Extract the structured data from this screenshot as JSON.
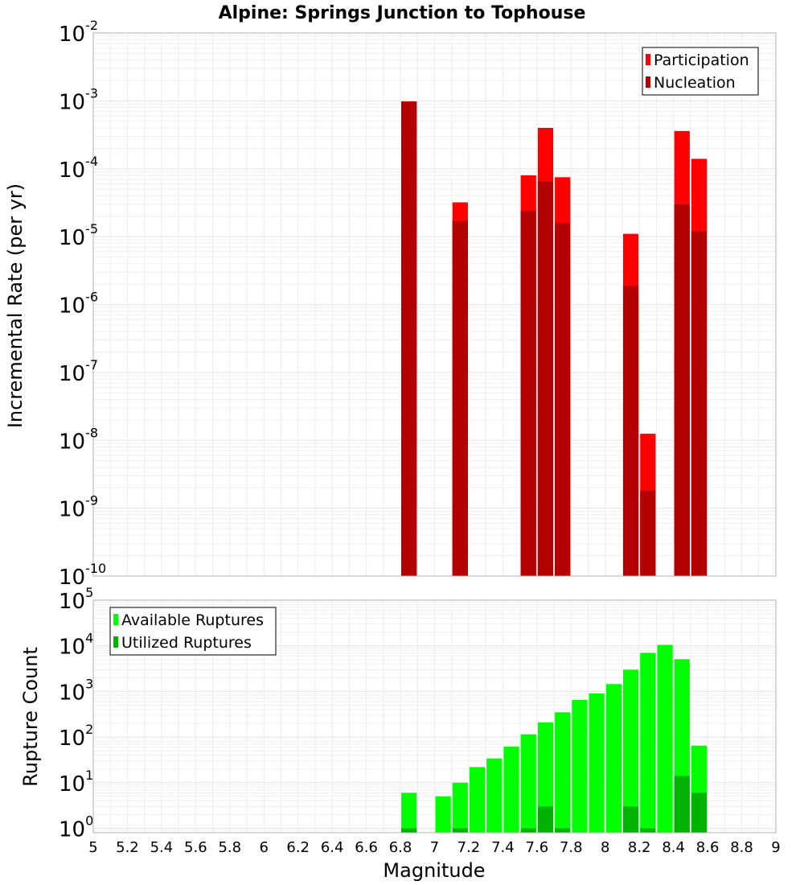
{
  "chart_data": [
    {
      "type": "bar",
      "title": "Alpine: Springs Junction to Tophouse",
      "ylabel": "Incremental Rate (per yr)",
      "yscale": "log",
      "ylim": [
        1e-10,
        0.01
      ],
      "xlim": [
        5,
        9
      ],
      "grid": true,
      "legend_placement": "top-right",
      "x": [
        6.85,
        7.15,
        7.55,
        7.65,
        7.75,
        8.15,
        8.25,
        8.45,
        8.55
      ],
      "series": [
        {
          "name": "Participation",
          "color": "#ff0000",
          "values": [
            0.00098,
            3.2e-05,
            8e-05,
            0.0004,
            7.5e-05,
            1.1e-05,
            1.25e-08,
            0.00036,
            0.00014
          ]
        },
        {
          "name": "Nucleation",
          "color": "#b30000",
          "values": [
            0.00098,
            1.7e-05,
            2.4e-05,
            6.5e-05,
            1.6e-05,
            1.9e-06,
            1.8e-09,
            3e-05,
            1.2e-05
          ]
        }
      ],
      "y_ticks": [
        {
          "base": "10",
          "exp": "-10",
          "value": 1e-10
        },
        {
          "base": "10",
          "exp": "-9",
          "value": 1e-09
        },
        {
          "base": "10",
          "exp": "-8",
          "value": 1e-08
        },
        {
          "base": "10",
          "exp": "-7",
          "value": 1e-07
        },
        {
          "base": "10",
          "exp": "-6",
          "value": 1e-06
        },
        {
          "base": "10",
          "exp": "-5",
          "value": 1e-05
        },
        {
          "base": "10",
          "exp": "-4",
          "value": 0.0001
        },
        {
          "base": "10",
          "exp": "-3",
          "value": 0.001
        },
        {
          "base": "10",
          "exp": "-2",
          "value": 0.01
        }
      ]
    },
    {
      "type": "bar",
      "ylabel": "Rupture Count",
      "xlabel": "Magnitude",
      "yscale": "log",
      "ylim": [
        0.8,
        100000
      ],
      "xlim": [
        5,
        9
      ],
      "grid": true,
      "legend_placement": "top-left",
      "x": [
        6.85,
        7.05,
        7.15,
        7.25,
        7.35,
        7.45,
        7.55,
        7.65,
        7.75,
        7.85,
        7.95,
        8.05,
        8.15,
        8.25,
        8.35,
        8.45,
        8.55
      ],
      "series": [
        {
          "name": "Available Ruptures",
          "color": "#00ff00",
          "values": [
            6,
            5,
            10,
            22,
            34,
            62,
            115,
            210,
            350,
            650,
            900,
            1450,
            3000,
            7000,
            10500,
            5100,
            65
          ]
        },
        {
          "name": "Utilized Ruptures",
          "color": "#00b300",
          "values": [
            1,
            0,
            1,
            0,
            0,
            0,
            1,
            3,
            1,
            0,
            0,
            0,
            3,
            1,
            0,
            14,
            6
          ]
        }
      ],
      "y_ticks": [
        {
          "base": "10",
          "exp": "0",
          "value": 1
        },
        {
          "base": "10",
          "exp": "1",
          "value": 10
        },
        {
          "base": "10",
          "exp": "2",
          "value": 100
        },
        {
          "base": "10",
          "exp": "3",
          "value": 1000
        },
        {
          "base": "10",
          "exp": "4",
          "value": 10000
        },
        {
          "base": "10",
          "exp": "5",
          "value": 100000
        }
      ],
      "x_ticks": [
        "5",
        "5.2",
        "5.4",
        "5.6",
        "5.8",
        "6",
        "6.2",
        "6.4",
        "6.6",
        "6.8",
        "7",
        "7.2",
        "7.4",
        "7.6",
        "7.8",
        "8",
        "8.2",
        "8.4",
        "8.6",
        "8.8",
        "9"
      ]
    }
  ]
}
